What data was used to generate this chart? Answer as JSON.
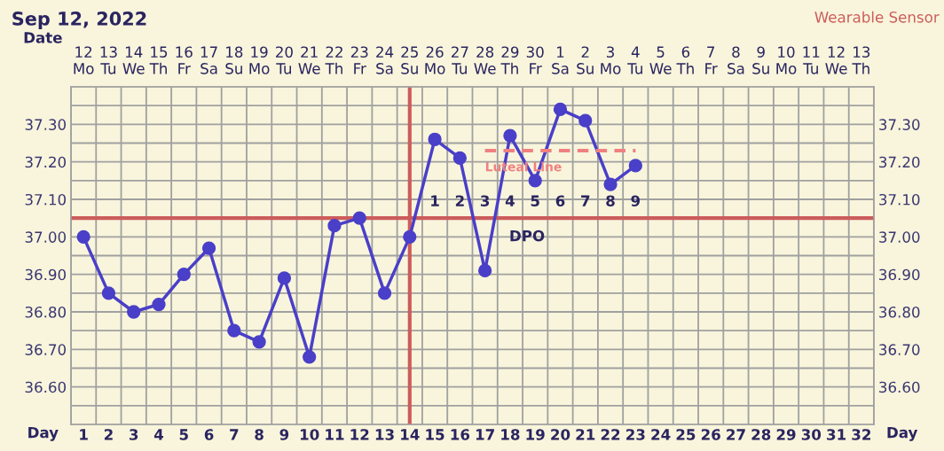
{
  "chart_data": {
    "type": "line",
    "title": "Sep 12, 2022",
    "subtitle": "Wearable Sensor",
    "xlabel": "Day",
    "x2label": "Date",
    "x": [
      1,
      2,
      3,
      4,
      5,
      6,
      7,
      8,
      9,
      10,
      11,
      12,
      13,
      14,
      15,
      16,
      17,
      18,
      19,
      20,
      21,
      22,
      23
    ],
    "series": [
      {
        "color": "#4a3fc8",
        "marker": "circle",
        "line_style": "solid",
        "values": [
          37.0,
          36.85,
          36.8,
          36.82,
          36.9,
          36.97,
          36.75,
          36.72,
          36.89,
          36.68,
          37.03,
          37.05,
          36.85,
          37.0,
          37.26,
          37.21,
          36.91,
          37.27,
          37.15,
          37.34,
          37.31,
          37.14,
          37.19
        ]
      },
      {
        "name": "Luteal Line",
        "color": "#f08080",
        "marker": "none",
        "line_style": "dashed",
        "x": [
          17,
          23
        ],
        "values": [
          37.23,
          37.23
        ]
      }
    ],
    "xlim": [
      0.5,
      32.5
    ],
    "xticks": [
      1,
      2,
      3,
      4,
      5,
      6,
      7,
      8,
      9,
      10,
      11,
      12,
      13,
      14,
      15,
      16,
      17,
      18,
      19,
      20,
      21,
      22,
      23,
      24,
      25,
      26,
      27,
      28,
      29,
      30,
      31,
      32
    ],
    "ylim": [
      36.5,
      37.4
    ],
    "yticks": [
      {
        "value": 36.55,
        "label": null
      },
      {
        "value": 36.6,
        "label": "36.60"
      },
      {
        "value": 36.65,
        "label": null
      },
      {
        "value": 36.7,
        "label": "36.70"
      },
      {
        "value": 36.75,
        "label": null
      },
      {
        "value": 36.8,
        "label": "36.80"
      },
      {
        "value": 36.85,
        "label": null
      },
      {
        "value": 36.9,
        "label": "36.90"
      },
      {
        "value": 36.95,
        "label": null
      },
      {
        "value": 37.0,
        "label": "37.00"
      },
      {
        "value": 37.1,
        "label": "37.10"
      },
      {
        "value": 37.15,
        "label": null
      },
      {
        "value": 37.2,
        "label": "37.20"
      },
      {
        "value": 37.25,
        "label": null
      },
      {
        "value": 37.3,
        "label": "37.30"
      },
      {
        "value": 37.35,
        "label": null
      }
    ],
    "y2lim": [
      36.5,
      37.4
    ],
    "y2ticks": [
      {
        "value": 36.55,
        "label": null
      },
      {
        "value": 36.6,
        "label": "36.60"
      },
      {
        "value": 36.65,
        "label": null
      },
      {
        "value": 36.7,
        "label": "36.70"
      },
      {
        "value": 36.75,
        "label": null
      },
      {
        "value": 36.8,
        "label": "36.80"
      },
      {
        "value": 36.85,
        "label": null
      },
      {
        "value": 36.9,
        "label": "36.90"
      },
      {
        "value": 36.95,
        "label": null
      },
      {
        "value": 37.0,
        "label": "37.00"
      },
      {
        "value": 37.1,
        "label": "37.10"
      },
      {
        "value": 37.15,
        "label": null
      },
      {
        "value": 37.2,
        "label": "37.20"
      },
      {
        "value": 37.25,
        "label": null
      },
      {
        "value": 37.3,
        "label": "37.30"
      },
      {
        "value": 37.35,
        "label": null
      }
    ],
    "grid": true,
    "ref_lines": [
      {
        "axis": "y",
        "value": 37.05,
        "color": "#cd5c5c"
      },
      {
        "axis": "x",
        "value": 14,
        "color": "#cd5c5c"
      }
    ],
    "annotations": [
      "1",
      "2",
      "3",
      "4",
      "5",
      "6",
      "7",
      "8",
      "9",
      "DPO",
      "12\nMo",
      "13\nTu",
      "14\nWe",
      "15\nTh",
      "16\nFr",
      "17\nSa",
      "18\nSu",
      "19\nMo",
      "20\nTu",
      "21\nWe",
      "22\nTh",
      "23\nFr",
      "24\nSa",
      "25\nSu",
      "26\nMo",
      "27\nTu",
      "28\nWe",
      "29\nTh",
      "30\nFr",
      "1\nSa",
      "2\nSu",
      "3\nMo",
      "4\nTu",
      "5\nWe",
      "6\nTh",
      "7\nFr",
      "8\nSa",
      "9\nSu",
      "10\nMo",
      "11\nTu",
      "12\nWe",
      "13\nTh"
    ],
    "legend": false
  }
}
